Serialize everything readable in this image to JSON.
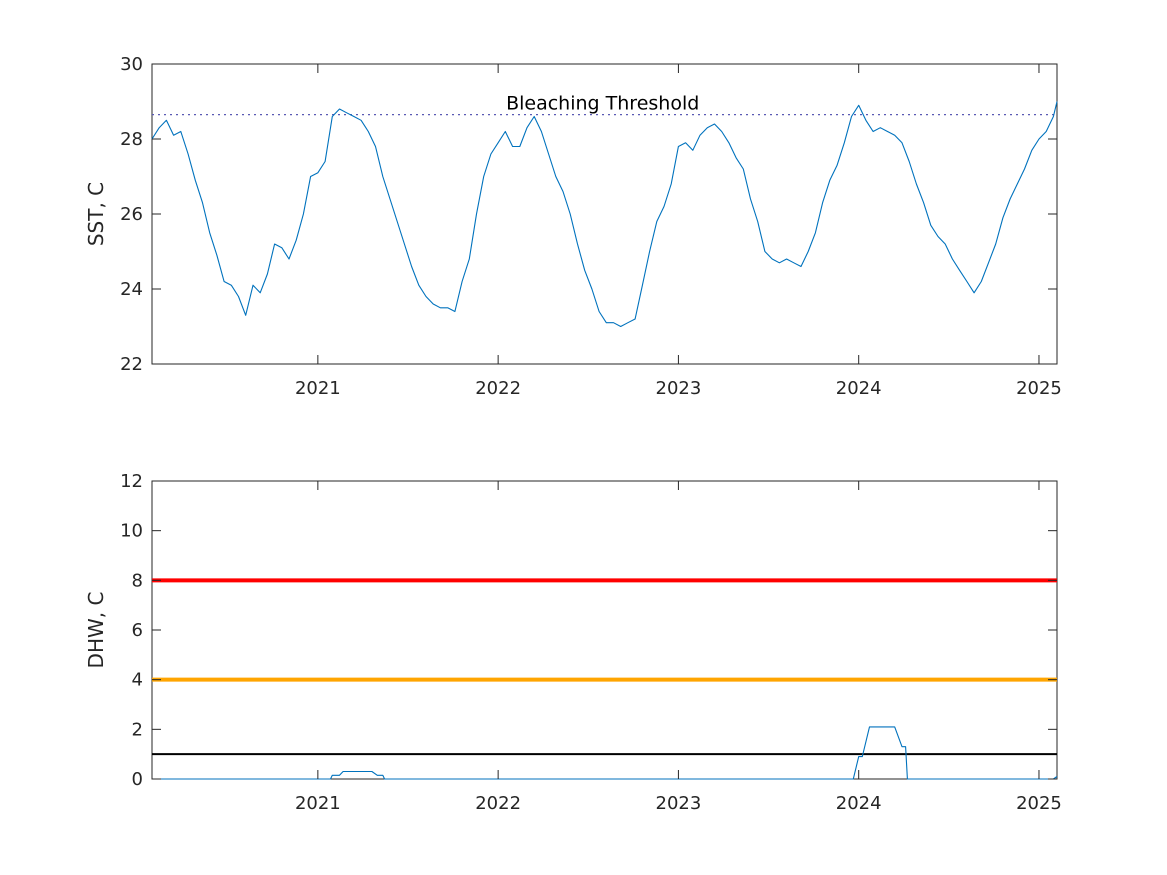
{
  "chart_data": [
    {
      "type": "line",
      "title": "",
      "xlabel": "",
      "ylabel": "SST, C",
      "xlim": [
        2020.08,
        2025.1
      ],
      "ylim": [
        22,
        30
      ],
      "x_ticks": [
        2021,
        2022,
        2023,
        2024,
        2025
      ],
      "x_tick_labels": [
        "2021",
        "2022",
        "2023",
        "2024",
        "2025"
      ],
      "y_ticks": [
        22,
        24,
        26,
        28,
        30
      ],
      "y_tick_labels": [
        "22",
        "24",
        "26",
        "28",
        "30"
      ],
      "grid": false,
      "annotation": {
        "text": "Bleaching Threshold",
        "x": 2022.58,
        "y": 28.95
      },
      "reference_lines": [
        {
          "y": 28.65,
          "style": "dotted",
          "color": "#5a5ab4"
        }
      ],
      "series": [
        {
          "color": "#0072bd",
          "x": [
            2020.08,
            2020.12,
            2020.16,
            2020.2,
            2020.24,
            2020.28,
            2020.32,
            2020.36,
            2020.4,
            2020.44,
            2020.48,
            2020.52,
            2020.56,
            2020.6,
            2020.64,
            2020.68,
            2020.72,
            2020.76,
            2020.8,
            2020.84,
            2020.88,
            2020.92,
            2020.96,
            2021.0,
            2021.04,
            2021.08,
            2021.12,
            2021.16,
            2021.2,
            2021.24,
            2021.28,
            2021.32,
            2021.36,
            2021.4,
            2021.44,
            2021.48,
            2021.52,
            2021.56,
            2021.6,
            2021.64,
            2021.68,
            2021.72,
            2021.76,
            2021.8,
            2021.84,
            2021.88,
            2021.92,
            2021.96,
            2022.0,
            2022.04,
            2022.08,
            2022.12,
            2022.16,
            2022.2,
            2022.24,
            2022.28,
            2022.32,
            2022.36,
            2022.4,
            2022.44,
            2022.48,
            2022.52,
            2022.56,
            2022.6,
            2022.64,
            2022.68,
            2022.72,
            2022.76,
            2022.8,
            2022.84,
            2022.88,
            2022.92,
            2022.96,
            2023.0,
            2023.04,
            2023.08,
            2023.12,
            2023.16,
            2023.2,
            2023.24,
            2023.28,
            2023.32,
            2023.36,
            2023.4,
            2023.44,
            2023.48,
            2023.52,
            2023.56,
            2023.6,
            2023.64,
            2023.68,
            2023.72,
            2023.76,
            2023.8,
            2023.84,
            2023.88,
            2023.92,
            2023.96,
            2024.0,
            2024.04,
            2024.08,
            2024.12,
            2024.16,
            2024.2,
            2024.24,
            2024.28,
            2024.32,
            2024.36,
            2024.4,
            2024.44,
            2024.48,
            2024.52,
            2024.56,
            2024.6,
            2024.64,
            2024.68,
            2024.72,
            2024.76,
            2024.8,
            2024.84,
            2024.88,
            2024.92,
            2024.96,
            2025.0,
            2025.04,
            2025.08,
            2025.1
          ],
          "y": [
            28.0,
            28.3,
            28.5,
            28.1,
            28.2,
            27.6,
            26.9,
            26.3,
            25.5,
            24.9,
            24.2,
            24.1,
            23.8,
            23.3,
            24.1,
            23.9,
            24.4,
            25.2,
            25.1,
            24.8,
            25.3,
            26.0,
            27.0,
            27.1,
            27.4,
            28.6,
            28.8,
            28.7,
            28.6,
            28.5,
            28.2,
            27.8,
            27.0,
            26.4,
            25.8,
            25.2,
            24.6,
            24.1,
            23.8,
            23.6,
            23.5,
            23.5,
            23.4,
            24.2,
            24.8,
            26.0,
            27.0,
            27.6,
            27.9,
            28.2,
            27.8,
            27.8,
            28.3,
            28.6,
            28.2,
            27.6,
            27.0,
            26.6,
            26.0,
            25.2,
            24.5,
            24.0,
            23.4,
            23.1,
            23.1,
            23.0,
            23.1,
            23.2,
            24.1,
            25.0,
            25.8,
            26.2,
            26.8,
            27.8,
            27.9,
            27.7,
            28.1,
            28.3,
            28.4,
            28.2,
            27.9,
            27.5,
            27.2,
            26.4,
            25.8,
            25.0,
            24.8,
            24.7,
            24.8,
            24.7,
            24.6,
            25.0,
            25.5,
            26.3,
            26.9,
            27.3,
            27.9,
            28.6,
            28.9,
            28.5,
            28.2,
            28.3,
            28.2,
            28.1,
            27.9,
            27.4,
            26.8,
            26.3,
            25.7,
            25.4,
            25.2,
            24.8,
            24.5,
            24.2,
            23.9,
            24.2,
            24.7,
            25.2,
            25.9,
            26.4,
            26.8,
            27.2,
            27.7,
            28.0,
            28.2,
            28.6,
            29.0
          ]
        }
      ]
    },
    {
      "type": "line",
      "title": "",
      "xlabel": "",
      "ylabel": "DHW, C",
      "xlim": [
        2020.08,
        2025.1
      ],
      "ylim": [
        0,
        12
      ],
      "x_ticks": [
        2021,
        2022,
        2023,
        2024,
        2025
      ],
      "x_tick_labels": [
        "2021",
        "2022",
        "2023",
        "2024",
        "2025"
      ],
      "y_ticks": [
        0,
        2,
        4,
        6,
        8,
        10,
        12
      ],
      "y_tick_labels": [
        "0",
        "2",
        "4",
        "6",
        "8",
        "10",
        "12"
      ],
      "grid": false,
      "reference_lines": [
        {
          "y": 8,
          "style": "solid",
          "color": "#ff0000"
        },
        {
          "y": 4,
          "style": "solid",
          "color": "#ffa500"
        },
        {
          "y": 1,
          "style": "solid",
          "color": "#000000"
        }
      ],
      "series": [
        {
          "color": "#0072bd",
          "x": [
            2020.08,
            2021.07,
            2021.08,
            2021.12,
            2021.14,
            2021.3,
            2021.33,
            2021.36,
            2021.37,
            2023.97,
            2024.0,
            2024.02,
            2024.04,
            2024.06,
            2024.2,
            2024.24,
            2024.26,
            2024.27,
            2025.08,
            2025.1
          ],
          "y": [
            0,
            0,
            0.15,
            0.15,
            0.3,
            0.3,
            0.15,
            0.15,
            0,
            0,
            0.9,
            0.9,
            1.5,
            2.1,
            2.1,
            1.3,
            1.3,
            0,
            0,
            0.1
          ]
        }
      ]
    }
  ]
}
